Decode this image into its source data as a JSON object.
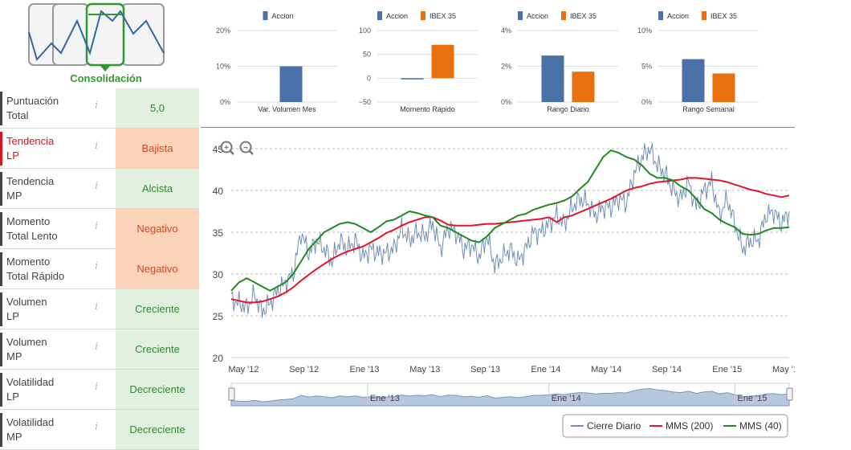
{
  "logo": {
    "caption": "Consolidación",
    "accent": "#2e9a2e",
    "line_color": "#3366aa"
  },
  "scores": [
    {
      "label1": "Puntuación",
      "label2": "Total",
      "value": "5,0",
      "status": "pos",
      "highlight": false
    },
    {
      "label1": "Tendencia",
      "label2": "LP",
      "value": "Bajista",
      "status": "neg",
      "highlight": true
    },
    {
      "label1": "Tendencia",
      "label2": "MP",
      "value": "Alcista",
      "status": "pos",
      "highlight": false
    },
    {
      "label1": "Momento",
      "label2": "Total Lento",
      "value": "Negativo",
      "status": "neg",
      "highlight": false
    },
    {
      "label1": "Momento",
      "label2": "Total Rápido",
      "value": "Negativo",
      "status": "neg",
      "highlight": false
    },
    {
      "label1": "Volumen",
      "label2": "LP",
      "value": "Creciente",
      "status": "pos",
      "highlight": false
    },
    {
      "label1": "Volumen",
      "label2": "MP",
      "value": "Creciente",
      "status": "pos",
      "highlight": false
    },
    {
      "label1": "Volatilidad",
      "label2": "LP",
      "value": "Decreciente",
      "status": "pos",
      "highlight": false
    },
    {
      "label1": "Volatilidad",
      "label2": "MP",
      "value": "Decreciente",
      "status": "pos",
      "highlight": false
    }
  ],
  "info_glyph": "i",
  "colors": {
    "accion": "#4a72a8",
    "ibex": "#e8700f",
    "cierre": "#6f8eb8",
    "mms200": "#e3142a",
    "mms40": "#1f8a1f"
  },
  "chart_data": [
    {
      "type": "bar",
      "title": "Var. Volumen Mes",
      "series": [
        {
          "name": "Accion",
          "values": [
            10
          ]
        }
      ],
      "ylim": [
        0,
        20
      ],
      "ticks": [
        "20%",
        "10%",
        "0%"
      ],
      "tick_values": [
        20,
        10,
        0
      ]
    },
    {
      "type": "bar",
      "title": "Momento Rápido",
      "series": [
        {
          "name": "Accion",
          "values": [
            -2
          ]
        },
        {
          "name": "IBEX 35",
          "values": [
            70
          ]
        }
      ],
      "ylim": [
        -50,
        100
      ],
      "ticks": [
        "100",
        "50",
        "0",
        "−50"
      ],
      "tick_values": [
        100,
        50,
        0,
        -50
      ]
    },
    {
      "type": "bar",
      "title": "Rango Diario",
      "series": [
        {
          "name": "Accion",
          "values": [
            2.6
          ]
        },
        {
          "name": "IBEX 35",
          "values": [
            1.7
          ]
        }
      ],
      "ylim": [
        0,
        4
      ],
      "ticks": [
        "4%",
        "2%",
        "0%"
      ],
      "tick_values": [
        4,
        2,
        0
      ]
    },
    {
      "type": "bar",
      "title": "Rango Semanal",
      "series": [
        {
          "name": "Accion",
          "values": [
            6
          ]
        },
        {
          "name": "IBEX 35",
          "values": [
            4
          ]
        }
      ],
      "ylim": [
        0,
        10
      ],
      "ticks": [
        "10%",
        "5%",
        "0%"
      ],
      "tick_values": [
        10,
        5,
        0
      ]
    },
    {
      "type": "line",
      "title": "",
      "ylim": [
        20,
        45
      ],
      "yticks": [
        20,
        25,
        30,
        35,
        40,
        45
      ],
      "xlabels": [
        "May '12",
        "Sep '12",
        "Ene '13",
        "May '13",
        "Sep '13",
        "Ene '14",
        "May '14",
        "Sep '14",
        "Ene '15",
        "May '15"
      ],
      "navigator_labels": [
        "Ene '13",
        "Ene '14",
        "Ene '15"
      ],
      "x": [
        0,
        0.5,
        1,
        1.5,
        2,
        2.5,
        3,
        3.5,
        4,
        4.5,
        5,
        5.5,
        6,
        6.5,
        7,
        7.5,
        8,
        8.5,
        9,
        9.5,
        10,
        10.5,
        11,
        11.5,
        12,
        12.5,
        13,
        13.5,
        14,
        14.5,
        15,
        15.5,
        16,
        16.5,
        17,
        17.5,
        18,
        18.5,
        19,
        19.5,
        20,
        20.5,
        21,
        21.5,
        22,
        22.5,
        23,
        23.5,
        24,
        24.5,
        25,
        25.5,
        26,
        26.5,
        27,
        27.5,
        28,
        28.5,
        29,
        29.5,
        30,
        30.5,
        31,
        31.5,
        32,
        32.5,
        33,
        33.5,
        34,
        34.5,
        35,
        35.5,
        36
      ],
      "series": [
        {
          "name": "Cierre Diario",
          "values": [
            27,
            26.5,
            26,
            27.5,
            25.5,
            26.5,
            28,
            29,
            30,
            35,
            32.5,
            34,
            33,
            31.5,
            34,
            33,
            34,
            32,
            33,
            32.5,
            32.5,
            33,
            35.5,
            34,
            35,
            34.5,
            36,
            33,
            35.5,
            35,
            33,
            33.5,
            32,
            34.5,
            31,
            32,
            33,
            31.5,
            33,
            35,
            35,
            36,
            37,
            36,
            38,
            39,
            38.5,
            37,
            38,
            38,
            39,
            38.5,
            42,
            44,
            45,
            43,
            42,
            40,
            39,
            41,
            38,
            40,
            41,
            37,
            39,
            36,
            33,
            34,
            34,
            37,
            37.5,
            36,
            37.5
          ]
        },
        {
          "name": "MMS (200)",
          "values": [
            27,
            26.8,
            26.6,
            26.6,
            26.7,
            27,
            27.3,
            27.8,
            28.4,
            29.2,
            29.9,
            30.6,
            31.2,
            31.8,
            32.3,
            32.7,
            33,
            33.3,
            33.8,
            34.3,
            34.9,
            35.3,
            35.8,
            36.2,
            36.5,
            36.8,
            36.8,
            36.4,
            35.9,
            35.8,
            35.8,
            35.8,
            35.9,
            36,
            36,
            36.1,
            36.2,
            36.3,
            36.4,
            36.5,
            36.6,
            36.8,
            36.2,
            36.8,
            37,
            37.4,
            37.8,
            38.2,
            38.6,
            39,
            39.5,
            40,
            40.3,
            40.5,
            40.8,
            41,
            41.1,
            41.2,
            41.3,
            41.5,
            41.5,
            41.4,
            41.3,
            41.2,
            41,
            40.7,
            40.4,
            40.1,
            39.9,
            39.6,
            39.4,
            39.2,
            39.4
          ]
        },
        {
          "name": "MMS (40)",
          "values": [
            28,
            29,
            29.5,
            29,
            28.5,
            28,
            28.5,
            29,
            30,
            31.5,
            33,
            34,
            35,
            35.5,
            36,
            36.2,
            36,
            35.5,
            35,
            35.6,
            36.3,
            36.5,
            37,
            37.5,
            37.3,
            37,
            36.8,
            35.8,
            35.5,
            35,
            34.5,
            34,
            33.8,
            34.5,
            35.5,
            36,
            36.5,
            37,
            37.2,
            37.7,
            38,
            38.3,
            38.5,
            38.8,
            39.3,
            40.2,
            41,
            42.5,
            44,
            44.8,
            44.5,
            44,
            43.7,
            43,
            42,
            41.5,
            41.5,
            41.2,
            40.5,
            40,
            39,
            37.8,
            37.3,
            36.5,
            36,
            35.6,
            34.8,
            34.7,
            34.8,
            35.2,
            35.5,
            35.5,
            35.6
          ]
        }
      ]
    }
  ],
  "zoom": {
    "in_label": "+",
    "out_label": "−"
  }
}
